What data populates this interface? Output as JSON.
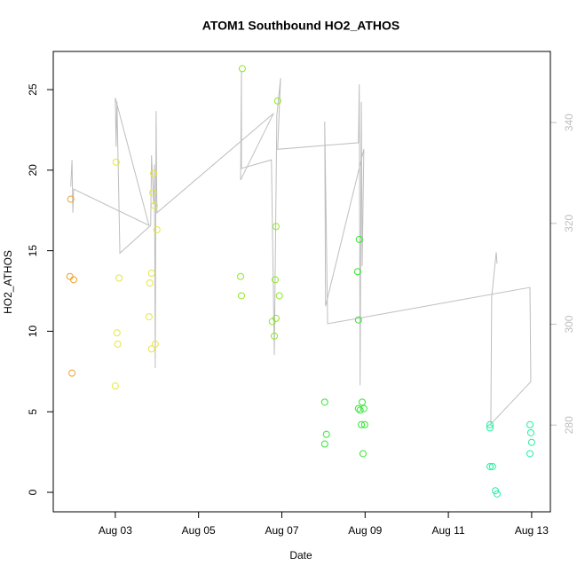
{
  "chart_data": {
    "type": "scatter",
    "title": "ATOM1 Southbound HO2_ATHOS",
    "x_label": "Date",
    "y_label": "HO2_ATHOS",
    "xlim": [
      1.51,
      13.45
    ],
    "ylim": [
      -1.21,
      27.37
    ],
    "y2lim": [
      262.8,
      354.1
    ],
    "xticks": [
      {
        "value": 3,
        "label": "Aug 03"
      },
      {
        "value": 5,
        "label": "Aug 05"
      },
      {
        "value": 7,
        "label": "Aug 07"
      },
      {
        "value": 9,
        "label": "Aug 09"
      },
      {
        "value": 11,
        "label": "Aug 11"
      },
      {
        "value": 13,
        "label": "Aug 13"
      }
    ],
    "yticks": [
      0,
      5,
      10,
      15,
      20,
      25
    ],
    "y2ticks": [
      280,
      300,
      320,
      340
    ],
    "grid": false,
    "series": [
      {
        "type": "line",
        "axis": "y2",
        "color": "#bebebe",
        "x": [
          1.93,
          1.96,
          1.98,
          2.0,
          3.81,
          3.0,
          3.02,
          3.04,
          3.11,
          3.85,
          3.87,
          3.92,
          3.94,
          3.96,
          3.98,
          4.0,
          6.8,
          6.01,
          6.03,
          6.03,
          6.75,
          6.82,
          6.88,
          6.97,
          6.9,
          8.84,
          8.86,
          8.88,
          8.91,
          8.93,
          8.97,
          8.05,
          8.03,
          8.1,
          12.96,
          12.98,
          12.02,
          12.04,
          12.15,
          12.17
        ],
        "values": [
          327.3,
          332.6,
          322.1,
          326.8,
          319.6,
          344.9,
          335.2,
          344.1,
          314.1,
          319.6,
          333.5,
          323.8,
          331.7,
          291.3,
          342.3,
          322.1,
          341.8,
          328.6,
          350.2,
          330.9,
          332.6,
          293.9,
          341.4,
          348.8,
          334.7,
          336.0,
          347.6,
          287.9,
          344.1,
          311.5,
          334.7,
          303.6,
          340.2,
          300.1,
          307.3,
          288.6,
          280.2,
          305.3,
          314.3,
          312.0
        ]
      },
      {
        "type": "scatter",
        "color": "#f0a030",
        "x": [
          1.93,
          1.91,
          2.0,
          1.96
        ],
        "values": [
          18.2,
          13.4,
          13.2,
          7.4
        ]
      },
      {
        "type": "scatter",
        "color": "#e6e640",
        "x": [
          3.02,
          3.09,
          3.04,
          3.06,
          3.0,
          3.92,
          3.9,
          3.94,
          4.0,
          3.87,
          3.83,
          3.81,
          3.87,
          3.96
        ],
        "values": [
          20.5,
          13.3,
          9.9,
          9.2,
          6.6,
          19.8,
          18.6,
          17.8,
          16.3,
          13.6,
          13.0,
          10.9,
          8.9,
          9.2
        ]
      },
      {
        "type": "scatter",
        "color": "#8ee628",
        "x": [
          6.05,
          6.01,
          6.03,
          6.9,
          6.86,
          6.84,
          6.94,
          6.77,
          6.86,
          6.82
        ],
        "values": [
          26.3,
          13.4,
          12.2,
          24.3,
          16.5,
          13.2,
          12.2,
          10.6,
          10.8,
          9.7
        ]
      },
      {
        "type": "scatter",
        "color": "#33e633",
        "x": [
          8.03,
          8.07,
          8.03,
          8.86,
          8.82,
          8.84,
          8.84,
          8.93,
          8.91,
          8.99,
          8.95,
          8.97,
          8.88
        ],
        "values": [
          5.6,
          3.6,
          3.0,
          15.7,
          13.7,
          10.7,
          5.2,
          5.6,
          4.2,
          4.2,
          2.4,
          5.2,
          5.1
        ]
      },
      {
        "type": "scatter",
        "color": "#1ef0a0",
        "x": [
          12.0,
          12.0,
          12.0,
          12.06,
          12.13,
          12.17,
          12.96,
          12.98,
          13.0,
          12.96
        ],
        "values": [
          4.2,
          4.0,
          1.6,
          1.6,
          0.1,
          -0.1,
          4.2,
          3.7,
          3.1,
          2.4
        ]
      }
    ]
  }
}
